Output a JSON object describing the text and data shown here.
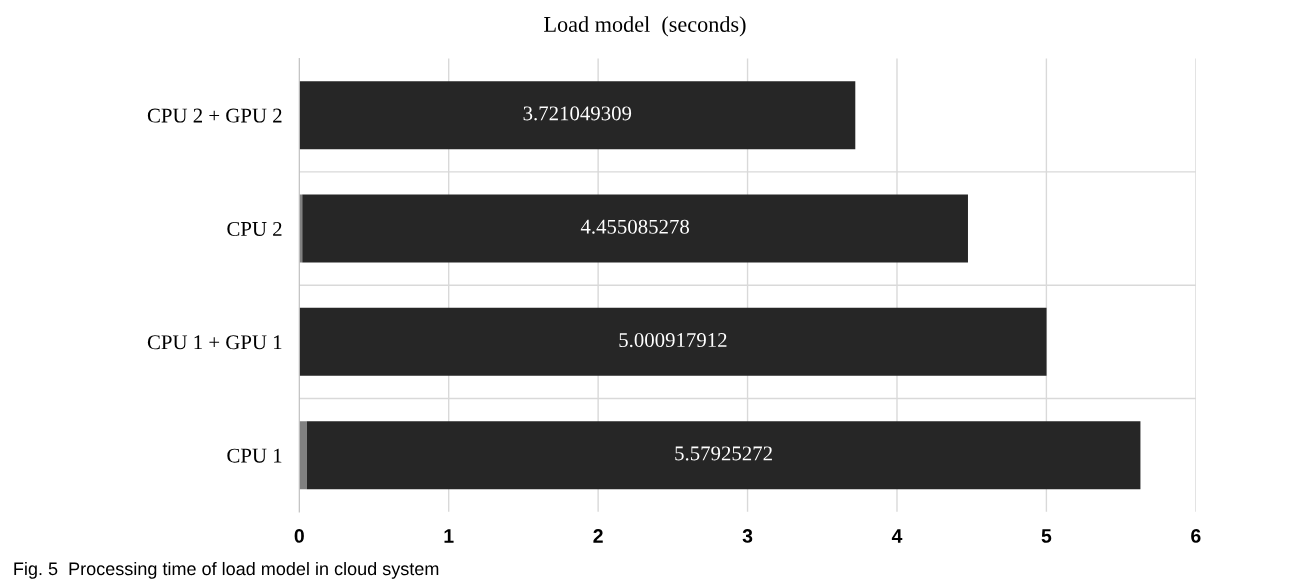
{
  "chart_data": {
    "type": "bar",
    "orientation": "horizontal",
    "stacked": true,
    "title": "Load model  (seconds)",
    "categories": [
      "CPU 2 + GPU 2",
      "CPU 2",
      "CPU 1 + GPU 1",
      "CPU 1"
    ],
    "series": [
      {
        "color": "#808080",
        "values": [
          0,
          0.02,
          0,
          0.05
        ]
      },
      {
        "color": "#262626",
        "values": [
          3.721049309,
          4.455085278,
          5.000917912,
          5.57925272
        ],
        "value_labels": [
          "3.721049309",
          "4.455085278",
          "5.000917912",
          "5.57925272"
        ]
      }
    ],
    "xlim": [
      0,
      6
    ],
    "xticks": [
      0,
      1,
      2,
      3,
      4,
      5,
      6
    ],
    "grid": true,
    "annotations": [
      "Fig. 5  Processing time of load model in cloud system"
    ]
  }
}
